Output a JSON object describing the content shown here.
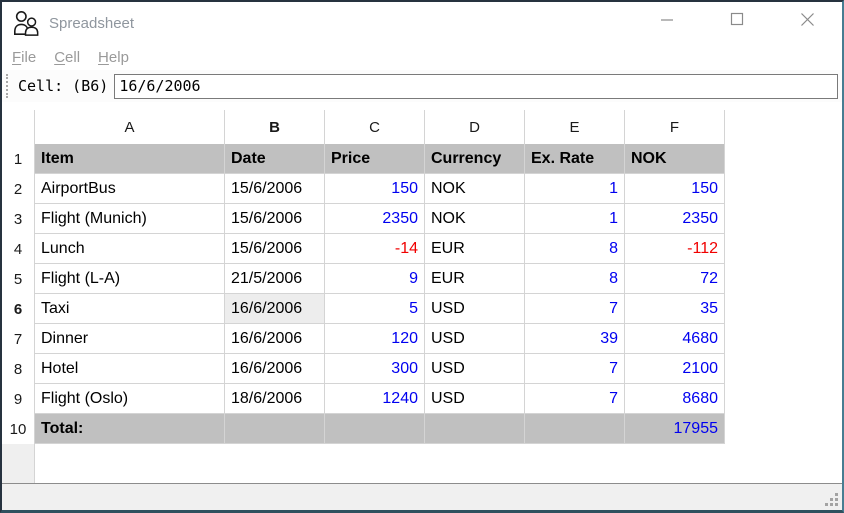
{
  "window": {
    "title": "Spreadsheet",
    "controls": {
      "minimize": "minimize",
      "maximize": "maximize",
      "close": "close"
    }
  },
  "menu": {
    "items": [
      {
        "label": "File",
        "mnemonic": "F",
        "rest": "ile"
      },
      {
        "label": "Cell",
        "mnemonic": "C",
        "rest": "ell"
      },
      {
        "label": "Help",
        "mnemonic": "H",
        "rest": "elp"
      }
    ]
  },
  "toolbar": {
    "cell_ref_label": "Cell: (B6)",
    "cell_value": "16/6/2006"
  },
  "sheet": {
    "selected_cell": "B6",
    "selected_column": "B",
    "selected_row": 6,
    "columns": [
      "A",
      "B",
      "C",
      "D",
      "E",
      "F"
    ],
    "rows": [
      {
        "n": 1,
        "type": "header",
        "cells": [
          "Item",
          "Date",
          "Price",
          "Currency",
          "Ex. Rate",
          "NOK"
        ]
      },
      {
        "n": 2,
        "cells": [
          "AirportBus",
          "15/6/2006",
          150,
          "NOK",
          1,
          150
        ]
      },
      {
        "n": 3,
        "cells": [
          "Flight (Munich)",
          "15/6/2006",
          2350,
          "NOK",
          1,
          2350
        ]
      },
      {
        "n": 4,
        "cells": [
          "Lunch",
          "15/6/2006",
          -14,
          "EUR",
          8,
          -112
        ]
      },
      {
        "n": 5,
        "cells": [
          "Flight (L-A)",
          "21/5/2006",
          9,
          "EUR",
          8,
          72
        ]
      },
      {
        "n": 6,
        "cells": [
          "Taxi",
          "16/6/2006",
          5,
          "USD",
          7,
          35
        ]
      },
      {
        "n": 7,
        "cells": [
          "Dinner",
          "16/6/2006",
          120,
          "USD",
          39,
          4680
        ]
      },
      {
        "n": 8,
        "cells": [
          "Hotel",
          "16/6/2006",
          300,
          "USD",
          7,
          2100
        ]
      },
      {
        "n": 9,
        "cells": [
          "Flight (Oslo)",
          "18/6/2006",
          1240,
          "USD",
          7,
          8680
        ]
      },
      {
        "n": 10,
        "type": "total",
        "cells": [
          "Total:",
          "",
          "",
          "",
          "",
          17955
        ]
      }
    ]
  },
  "colors": {
    "positive_number": "#0000f0",
    "negative_number": "#f00000",
    "header_row_bg": "#c0c0c0",
    "selected_cell_bg": "#ededed",
    "grid_line": "#d4d4d4",
    "window_border": "#26323f"
  }
}
